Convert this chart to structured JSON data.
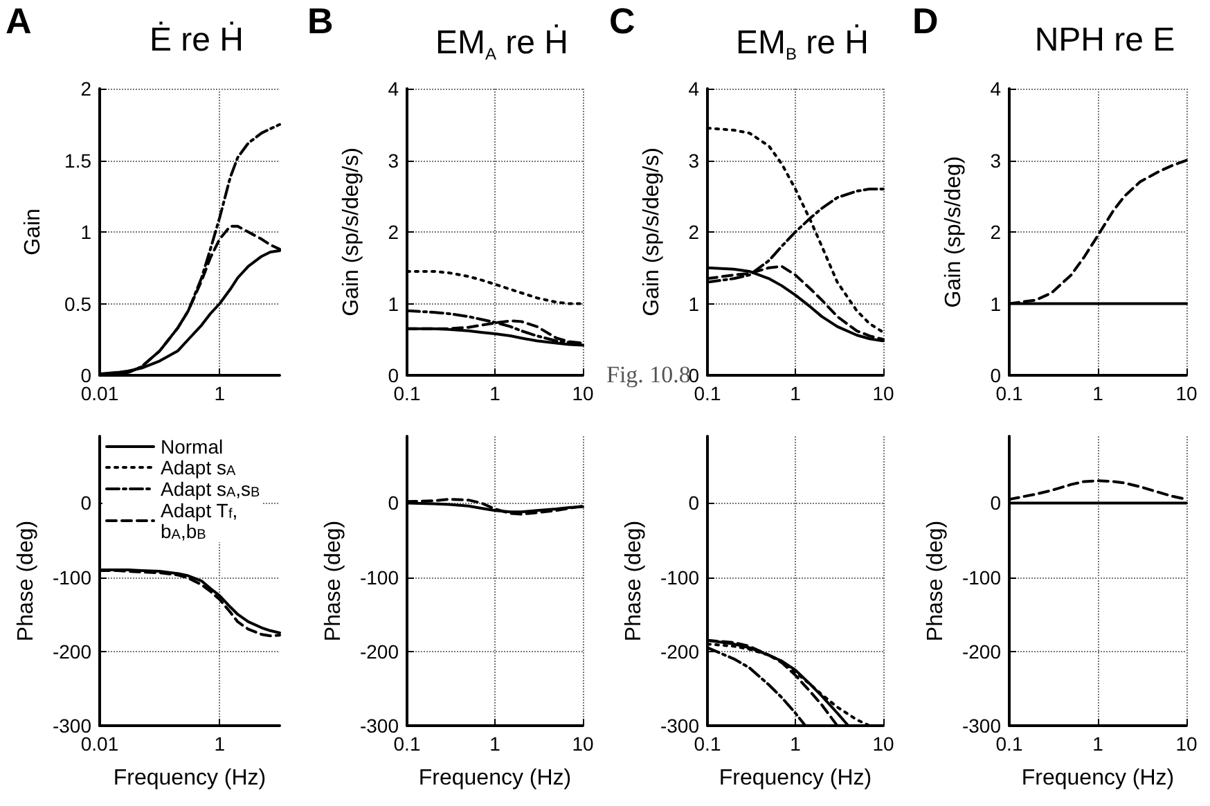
{
  "chart_data": [
    {
      "type": "line",
      "title": "Ė re Ḣ",
      "annotations": [
        "A"
      ],
      "ylabel": "Gain",
      "log": "x",
      "grid": true,
      "xlim": [
        0.01,
        10
      ],
      "xticks": [
        0.01,
        1
      ],
      "ylim": [
        0,
        2
      ],
      "yticks": [
        0,
        0.5,
        1,
        1.5,
        2
      ],
      "x": [
        0.01,
        0.02,
        0.03,
        0.05,
        0.1,
        0.2,
        0.3,
        0.5,
        0.7,
        1,
        1.5,
        2,
        3,
        5,
        7,
        10
      ],
      "series": [
        {
          "color": "#000000",
          "line_style": "solid",
          "values": [
            0.01,
            0.02,
            0.03,
            0.05,
            0.1,
            0.17,
            0.25,
            0.35,
            0.43,
            0.5,
            0.6,
            0.68,
            0.76,
            0.83,
            0.86,
            0.87
          ]
        },
        {
          "color": "#000000",
          "line_style": "dashdot",
          "values": [
            0.01,
            0.01,
            0.02,
            0.06,
            0.17,
            0.33,
            0.45,
            0.68,
            0.88,
            1.1,
            1.38,
            1.52,
            1.62,
            1.69,
            1.72,
            1.75
          ]
        },
        {
          "color": "#000000",
          "line_style": "dashed",
          "values": [
            0.01,
            0.01,
            0.02,
            0.06,
            0.17,
            0.33,
            0.45,
            0.66,
            0.82,
            0.95,
            1.04,
            1.04,
            1.0,
            0.95,
            0.91,
            0.88
          ]
        }
      ]
    },
    {
      "type": "line",
      "title": "EM$_{A}$ re Ḣ",
      "annotations": [
        "B"
      ],
      "ylabel": "Gain (sp/s/deg/s)",
      "log": "x",
      "grid": true,
      "xlim": [
        0.1,
        10
      ],
      "xticks": [
        0.1,
        1,
        10
      ],
      "ylim": [
        0,
        4
      ],
      "yticks": [
        0,
        1,
        2,
        3,
        4
      ],
      "x": [
        0.1,
        0.2,
        0.3,
        0.5,
        0.7,
        1,
        1.5,
        2,
        3,
        5,
        7,
        10
      ],
      "series": [
        {
          "color": "#000000",
          "line_style": "solid",
          "values": [
            0.65,
            0.65,
            0.64,
            0.62,
            0.6,
            0.58,
            0.55,
            0.52,
            0.48,
            0.45,
            0.43,
            0.42
          ]
        },
        {
          "color": "#000000",
          "line_style": "dotted",
          "values": [
            1.45,
            1.45,
            1.43,
            1.38,
            1.33,
            1.27,
            1.2,
            1.15,
            1.08,
            1.02,
            1.0,
            1.0
          ]
        },
        {
          "color": "#000000",
          "line_style": "dashdot",
          "values": [
            0.9,
            0.88,
            0.86,
            0.82,
            0.78,
            0.74,
            0.68,
            0.62,
            0.55,
            0.48,
            0.46,
            0.45
          ]
        },
        {
          "color": "#000000",
          "line_style": "dashed",
          "values": [
            0.65,
            0.65,
            0.65,
            0.67,
            0.7,
            0.73,
            0.76,
            0.75,
            0.68,
            0.52,
            0.47,
            0.45
          ]
        }
      ]
    },
    {
      "type": "line",
      "title": "EM$_{B}$ re Ḣ",
      "annotations": [
        "C",
        "Fig. 10.8"
      ],
      "ylabel": "Gain (sp/s/deg/s)",
      "log": "x",
      "grid": true,
      "xlim": [
        0.1,
        10
      ],
      "xticks": [
        0.1,
        1,
        10
      ],
      "ylim": [
        0,
        4
      ],
      "yticks": [
        0,
        1,
        2,
        3,
        4
      ],
      "x": [
        0.1,
        0.2,
        0.3,
        0.5,
        0.7,
        1,
        1.5,
        2,
        3,
        5,
        7,
        10
      ],
      "series": [
        {
          "color": "#000000",
          "line_style": "solid",
          "values": [
            1.5,
            1.48,
            1.45,
            1.35,
            1.25,
            1.12,
            0.95,
            0.82,
            0.68,
            0.56,
            0.51,
            0.48
          ]
        },
        {
          "color": "#000000",
          "line_style": "dotted",
          "values": [
            3.45,
            3.42,
            3.38,
            3.2,
            2.95,
            2.6,
            2.15,
            1.8,
            1.3,
            0.9,
            0.72,
            0.6
          ]
        },
        {
          "color": "#000000",
          "line_style": "dashdot",
          "values": [
            1.3,
            1.35,
            1.4,
            1.6,
            1.8,
            2.0,
            2.2,
            2.33,
            2.48,
            2.57,
            2.6,
            2.6
          ]
        },
        {
          "color": "#000000",
          "line_style": "dashed",
          "values": [
            1.35,
            1.4,
            1.42,
            1.5,
            1.52,
            1.4,
            1.2,
            1.05,
            0.82,
            0.62,
            0.55,
            0.5
          ]
        }
      ]
    },
    {
      "type": "line",
      "title": "NPH re E",
      "annotations": [
        "D"
      ],
      "ylabel": "Gain (sp/s/deg)",
      "log": "x",
      "grid": true,
      "xlim": [
        0.1,
        10
      ],
      "xticks": [
        0.1,
        1,
        10
      ],
      "ylim": [
        0,
        4
      ],
      "yticks": [
        0,
        1,
        2,
        3,
        4
      ],
      "x": [
        0.1,
        0.2,
        0.3,
        0.5,
        0.7,
        1,
        1.5,
        2,
        3,
        5,
        7,
        10
      ],
      "series": [
        {
          "color": "#000000",
          "line_style": "solid",
          "values": [
            1,
            1,
            1,
            1,
            1,
            1,
            1,
            1,
            1,
            1,
            1,
            1
          ]
        },
        {
          "color": "#000000",
          "line_style": "dashed",
          "values": [
            1.0,
            1.05,
            1.15,
            1.4,
            1.65,
            1.95,
            2.3,
            2.5,
            2.7,
            2.85,
            2.93,
            3.0
          ]
        }
      ]
    },
    {
      "type": "line",
      "xlabel": "Frequency (Hz)",
      "ylabel": "Phase (deg)",
      "log": "x",
      "grid": true,
      "legend": "top left",
      "xlim": [
        0.01,
        10
      ],
      "xticks": [
        0.01,
        1
      ],
      "ylim": [
        -300,
        90
      ],
      "yticks": [
        -300,
        -200,
        -100,
        0
      ],
      "x": [
        0.01,
        0.02,
        0.03,
        0.05,
        0.1,
        0.2,
        0.3,
        0.5,
        0.7,
        1,
        1.5,
        2,
        3,
        5,
        7,
        10
      ],
      "series": [
        {
          "name": "Normal",
          "color": "#000000",
          "line_style": "solid",
          "values": [
            -90,
            -90,
            -90,
            -91,
            -92,
            -95,
            -98,
            -105,
            -115,
            -125,
            -140,
            -150,
            -160,
            -168,
            -172,
            -175
          ]
        },
        {
          "name": "Adapt s$_{A}$",
          "color": "#000000",
          "line_style": "dotted",
          "values": [
            null,
            null,
            null,
            null,
            null,
            null,
            null,
            null,
            null,
            null,
            null,
            null,
            null,
            null,
            null,
            null
          ]
        },
        {
          "name": "Adapt s$_{A}$,s$_{B}$",
          "color": "#000000",
          "line_style": "dashdot",
          "values": [
            null,
            null,
            null,
            null,
            null,
            null,
            null,
            null,
            null,
            null,
            null,
            null,
            null,
            null,
            null,
            null
          ]
        },
        {
          "name": "Adapt T$_{f}$, b$_{A}$,b$_{B}$",
          "color": "#000000",
          "line_style": "dashed",
          "values": [
            -91,
            -91,
            -92,
            -93,
            -94,
            -97,
            -101,
            -110,
            -119,
            -130,
            -147,
            -160,
            -170,
            -177,
            -179,
            -178
          ]
        }
      ]
    },
    {
      "type": "line",
      "xlabel": "Frequency (Hz)",
      "ylabel": "Phase (deg)",
      "log": "x",
      "grid": true,
      "xlim": [
        0.1,
        10
      ],
      "xticks": [
        0.1,
        1,
        10
      ],
      "ylim": [
        -300,
        90
      ],
      "yticks": [
        -300,
        -200,
        -100,
        0
      ],
      "x": [
        0.1,
        0.2,
        0.3,
        0.5,
        0.7,
        1,
        1.5,
        2,
        3,
        5,
        7,
        10
      ],
      "series": [
        {
          "color": "#000000",
          "line_style": "solid",
          "values": [
            0,
            -1,
            -2,
            -4,
            -7,
            -10,
            -12,
            -12,
            -10,
            -8,
            -6,
            -5
          ]
        },
        {
          "color": "#000000",
          "line_style": "dashed",
          "values": [
            2,
            3,
            5,
            4,
            0,
            -8,
            -14,
            -15,
            -13,
            -10,
            -7,
            -4
          ]
        }
      ]
    },
    {
      "type": "line",
      "xlabel": "Frequency (Hz)",
      "ylabel": "Phase (deg)",
      "log": "x",
      "grid": true,
      "xlim": [
        0.1,
        10
      ],
      "xticks": [
        0.1,
        1,
        10
      ],
      "ylim": [
        -300,
        90
      ],
      "yticks": [
        -300,
        -200,
        -100,
        0
      ],
      "series": [
        {
          "color": "#000000",
          "line_style": "solid",
          "x": [
            0.1,
            0.2,
            0.3,
            0.5,
            0.7,
            1,
            1.5,
            2,
            3,
            4
          ],
          "values": [
            -185,
            -190,
            -195,
            -205,
            -213,
            -225,
            -245,
            -260,
            -283,
            -300
          ]
        },
        {
          "color": "#000000",
          "line_style": "dotted",
          "x": [
            0.1,
            0.2,
            0.3,
            0.5,
            0.7,
            1,
            1.5,
            2,
            3,
            5,
            7
          ],
          "values": [
            -190,
            -193,
            -197,
            -205,
            -213,
            -228,
            -245,
            -258,
            -275,
            -292,
            -300
          ]
        },
        {
          "color": "#000000",
          "line_style": "dashdot",
          "x": [
            0.1,
            0.2,
            0.3,
            0.5,
            0.7,
            1,
            1.3
          ],
          "values": [
            -195,
            -210,
            -222,
            -245,
            -262,
            -283,
            -300
          ]
        },
        {
          "color": "#000000",
          "line_style": "dashed",
          "x": [
            0.1,
            0.2,
            0.3,
            0.5,
            0.7,
            1,
            1.5,
            2,
            3
          ],
          "values": [
            -185,
            -188,
            -193,
            -205,
            -215,
            -232,
            -255,
            -272,
            -300
          ]
        }
      ]
    },
    {
      "type": "line",
      "xlabel": "Frequency (Hz)",
      "ylabel": "Phase (deg)",
      "log": "x",
      "grid": true,
      "xlim": [
        0.1,
        10
      ],
      "xticks": [
        0.1,
        1,
        10
      ],
      "ylim": [
        -300,
        90
      ],
      "yticks": [
        -300,
        -200,
        -100,
        0
      ],
      "x": [
        0.1,
        0.2,
        0.3,
        0.5,
        0.7,
        1,
        1.5,
        2,
        3,
        5,
        7,
        10
      ],
      "series": [
        {
          "color": "#000000",
          "line_style": "solid",
          "values": [
            0,
            0,
            0,
            0,
            0,
            0,
            0,
            0,
            0,
            0,
            0,
            0
          ]
        },
        {
          "color": "#000000",
          "line_style": "dashed",
          "values": [
            5,
            12,
            17,
            25,
            29,
            30,
            29,
            27,
            22,
            14,
            9,
            5
          ]
        }
      ]
    }
  ]
}
